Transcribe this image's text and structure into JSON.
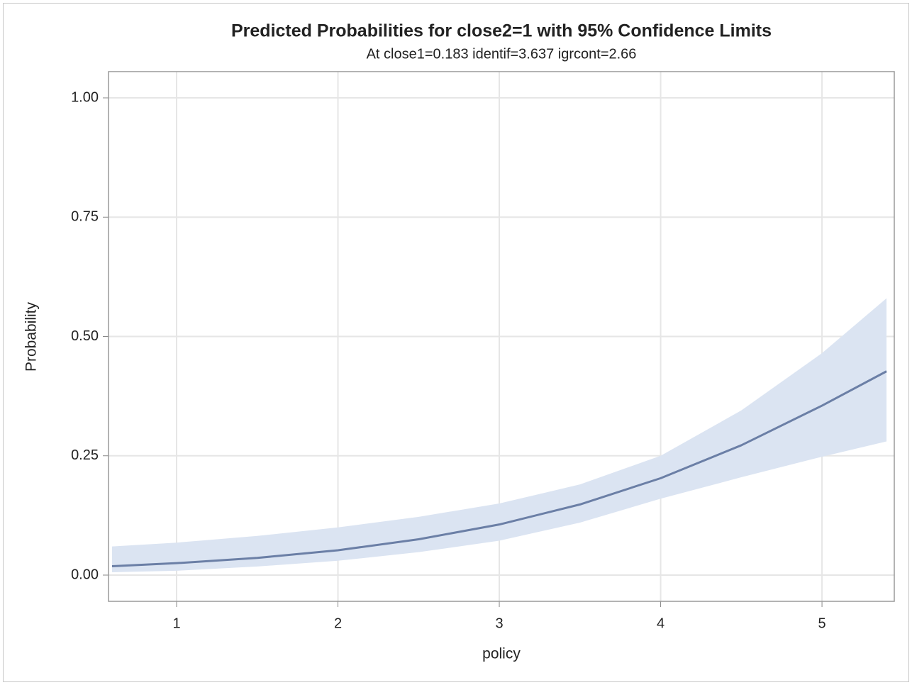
{
  "chart_data": {
    "type": "line",
    "title": "Predicted Probabilities for close2=1 with 95% Confidence Limits",
    "subtitle": "At close1=0.183 identif=3.637 igrcont=2.66",
    "x_label": "policy",
    "y_label": "Probability",
    "x": [
      0.6,
      1,
      1.5,
      2,
      2.5,
      3,
      3.5,
      4,
      4.5,
      5,
      5.4
    ],
    "values": [
      0.0185,
      0.025,
      0.036,
      0.052,
      0.075,
      0.106,
      0.148,
      0.203,
      0.272,
      0.355,
      0.427
    ],
    "lower": [
      0.006,
      0.009,
      0.018,
      0.03,
      0.048,
      0.072,
      0.11,
      0.16,
      0.205,
      0.248,
      0.28
    ],
    "upper": [
      0.06,
      0.068,
      0.082,
      0.1,
      0.122,
      0.15,
      0.19,
      0.25,
      0.345,
      0.465,
      0.58
    ],
    "line_color": "#6b7fa6",
    "band_color": "#dbe4f2",
    "xlim": [
      0.578,
      5.448
    ],
    "ylim": [
      -0.055,
      1.055
    ],
    "xticks": [
      1,
      2,
      3,
      4,
      5
    ],
    "yticks": [
      {
        "value": 0,
        "label": "0.00"
      },
      {
        "value": 0.25,
        "label": "0.25"
      },
      {
        "value": 0.5,
        "label": "0.50"
      },
      {
        "value": 0.75,
        "label": "0.75"
      },
      {
        "value": 1,
        "label": "1.00"
      }
    ],
    "grid": true
  }
}
